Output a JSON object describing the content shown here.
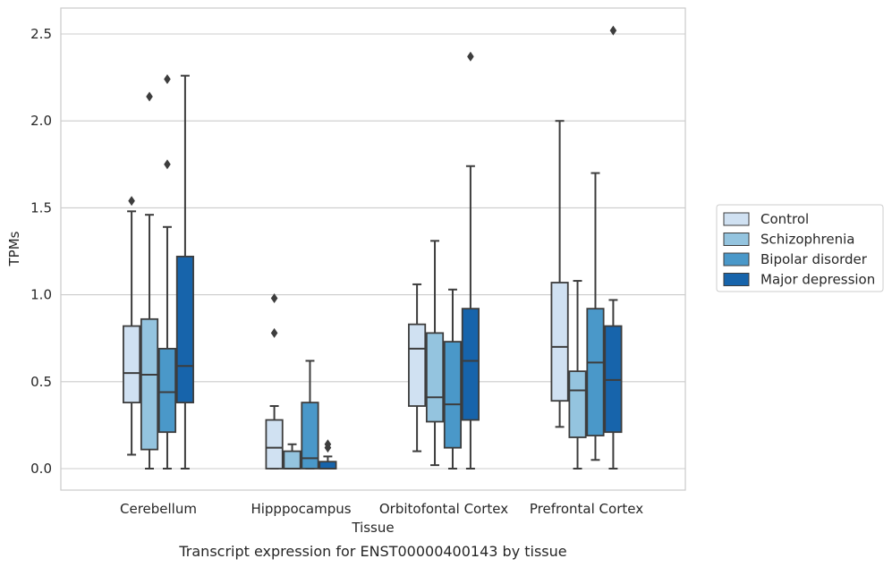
{
  "caption": "Transcript expression for ENST00000400143 by tissue",
  "chart_data": {
    "type": "box",
    "title": "",
    "xlabel": "Tissue",
    "ylabel": "TPMs",
    "ylim": [
      -0.12,
      2.65
    ],
    "yticks": [
      0.0,
      0.5,
      1.0,
      1.5,
      2.0,
      2.5
    ],
    "ytick_labels": [
      "0.0",
      "0.5",
      "1.0",
      "1.5",
      "2.0",
      "2.5"
    ],
    "grid": "horizontal",
    "legend_position": "right",
    "categories": [
      "Cerebellum",
      "Hipppocampus",
      "Orbitofontal Cortex",
      "Prefrontal Cortex"
    ],
    "series": [
      {
        "name": "Control",
        "color": "#d0e1f2",
        "boxes": [
          {
            "whislo": 0.08,
            "q1": 0.38,
            "med": 0.55,
            "q3": 0.82,
            "whishi": 1.48,
            "fliers": [
              1.54
            ]
          },
          {
            "whislo": 0.0,
            "q1": 0.0,
            "med": 0.12,
            "q3": 0.28,
            "whishi": 0.36,
            "fliers": [
              0.78,
              0.98
            ]
          },
          {
            "whislo": 0.1,
            "q1": 0.36,
            "med": 0.69,
            "q3": 0.83,
            "whishi": 1.06,
            "fliers": []
          },
          {
            "whislo": 0.24,
            "q1": 0.39,
            "med": 0.7,
            "q3": 1.07,
            "whishi": 2.0,
            "fliers": []
          }
        ]
      },
      {
        "name": "Schizophrenia",
        "color": "#94c4df",
        "boxes": [
          {
            "whislo": 0.0,
            "q1": 0.11,
            "med": 0.54,
            "q3": 0.86,
            "whishi": 1.46,
            "fliers": [
              2.14
            ]
          },
          {
            "whislo": 0.0,
            "q1": 0.0,
            "med": 0.0,
            "q3": 0.1,
            "whishi": 0.14,
            "fliers": []
          },
          {
            "whislo": 0.02,
            "q1": 0.27,
            "med": 0.41,
            "q3": 0.78,
            "whishi": 1.31,
            "fliers": []
          },
          {
            "whislo": 0.0,
            "q1": 0.18,
            "med": 0.45,
            "q3": 0.56,
            "whishi": 1.08,
            "fliers": []
          }
        ]
      },
      {
        "name": "Bipolar disorder",
        "color": "#4a98c9",
        "boxes": [
          {
            "whislo": 0.0,
            "q1": 0.21,
            "med": 0.44,
            "q3": 0.69,
            "whishi": 1.39,
            "fliers": [
              1.75,
              2.24
            ]
          },
          {
            "whislo": 0.0,
            "q1": 0.0,
            "med": 0.06,
            "q3": 0.38,
            "whishi": 0.62,
            "fliers": []
          },
          {
            "whislo": 0.0,
            "q1": 0.12,
            "med": 0.37,
            "q3": 0.73,
            "whishi": 1.03,
            "fliers": []
          },
          {
            "whislo": 0.05,
            "q1": 0.19,
            "med": 0.61,
            "q3": 0.92,
            "whishi": 1.7,
            "fliers": []
          }
        ]
      },
      {
        "name": "Major depression",
        "color": "#1764ab",
        "boxes": [
          {
            "whislo": 0.0,
            "q1": 0.38,
            "med": 0.59,
            "q3": 1.22,
            "whishi": 2.26,
            "fliers": []
          },
          {
            "whislo": 0.0,
            "q1": 0.0,
            "med": 0.0,
            "q3": 0.04,
            "whishi": 0.07,
            "fliers": [
              0.12,
              0.14
            ]
          },
          {
            "whislo": 0.0,
            "q1": 0.28,
            "med": 0.62,
            "q3": 0.92,
            "whishi": 1.74,
            "fliers": [
              2.37
            ]
          },
          {
            "whislo": 0.0,
            "q1": 0.21,
            "med": 0.51,
            "q3": 0.82,
            "whishi": 0.97,
            "fliers": [
              2.52
            ]
          }
        ]
      }
    ]
  }
}
